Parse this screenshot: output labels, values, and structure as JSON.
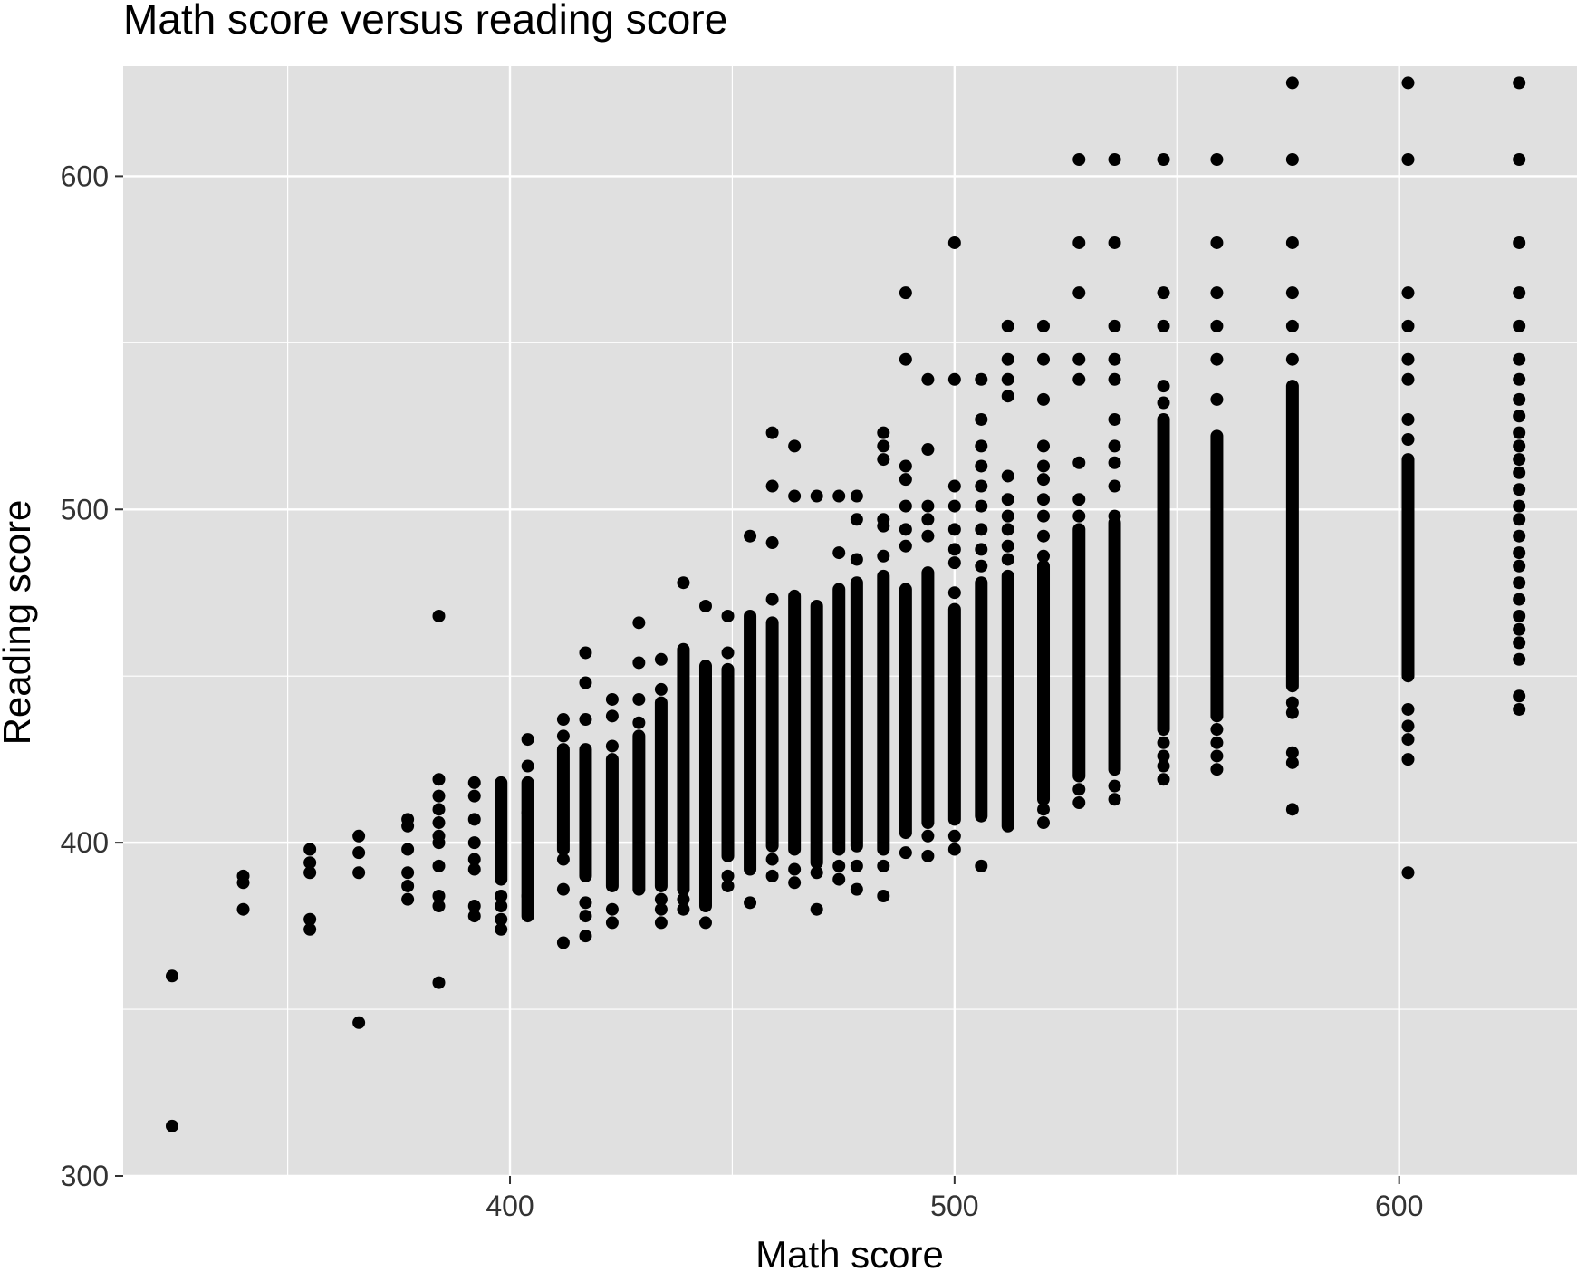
{
  "chart_data": {
    "type": "scatter",
    "title": "Math score versus reading score",
    "xlabel": "Math score",
    "ylabel": "Reading score",
    "xlim": [
      313,
      640
    ],
    "ylim": [
      300,
      633
    ],
    "x_ticks": [
      400,
      500,
      600
    ],
    "y_ticks": [
      300,
      400,
      500,
      600
    ],
    "grid": true,
    "legend": "none",
    "colors": {
      "panel": "#e0e0e0",
      "grid": "#ffffff",
      "point": "#000000",
      "tick": "#333333"
    },
    "columns": [
      {
        "x": 324,
        "y": [
          315,
          360
        ]
      },
      {
        "x": 340,
        "y": [
          380,
          388,
          390
        ]
      },
      {
        "x": 355,
        "y": [
          374,
          377,
          391,
          394,
          398
        ]
      },
      {
        "x": 366,
        "y": [
          346,
          391,
          397,
          402
        ]
      },
      {
        "x": 377,
        "y": [
          383,
          387,
          391,
          398,
          405,
          407
        ]
      },
      {
        "x": 384,
        "y": [
          358,
          381,
          384,
          393,
          400,
          402,
          406,
          410,
          414,
          419,
          468
        ]
      },
      {
        "x": 392,
        "y": [
          378,
          381,
          392,
          395,
          400,
          407,
          414,
          418
        ]
      },
      {
        "x": 398,
        "y": [
          374,
          377,
          381,
          384
        ],
        "ranges": [
          [
            389,
            418
          ]
        ]
      },
      {
        "x": 404,
        "y": [
          384,
          409,
          423,
          431
        ],
        "ranges": [
          [
            378,
            418
          ]
        ]
      },
      {
        "x": 412,
        "y": [
          370,
          386,
          395,
          432,
          437
        ],
        "ranges": [
          [
            398,
            428
          ]
        ]
      },
      {
        "x": 417,
        "y": [
          372,
          378,
          382,
          437,
          448,
          457
        ],
        "ranges": [
          [
            390,
            428
          ]
        ]
      },
      {
        "x": 423,
        "y": [
          376,
          380,
          429,
          438,
          443
        ],
        "ranges": [
          [
            387,
            425
          ]
        ]
      },
      {
        "x": 429,
        "y": [
          436,
          443,
          454,
          466
        ],
        "ranges": [
          [
            386,
            432
          ]
        ]
      },
      {
        "x": 434,
        "y": [
          376,
          380,
          383,
          446,
          455
        ],
        "ranges": [
          [
            387,
            442
          ]
        ]
      },
      {
        "x": 439,
        "y": [
          380,
          383,
          478
        ],
        "ranges": [
          [
            386,
            458
          ]
        ]
      },
      {
        "x": 444,
        "y": [
          376,
          471
        ],
        "ranges": [
          [
            381,
            453
          ]
        ]
      },
      {
        "x": 449,
        "y": [
          387,
          390,
          457,
          468
        ],
        "ranges": [
          [
            396,
            452
          ]
        ]
      },
      {
        "x": 454,
        "y": [
          382,
          492
        ],
        "ranges": [
          [
            392,
            468
          ]
        ]
      },
      {
        "x": 459,
        "y": [
          390,
          395,
          473,
          490,
          507,
          523
        ],
        "ranges": [
          [
            399,
            466
          ]
        ]
      },
      {
        "x": 464,
        "y": [
          388,
          392,
          504,
          519
        ],
        "ranges": [
          [
            398,
            474
          ]
        ]
      },
      {
        "x": 469,
        "y": [
          380,
          391,
          504
        ],
        "ranges": [
          [
            394,
            471
          ]
        ]
      },
      {
        "x": 474,
        "y": [
          389,
          393,
          487,
          504
        ],
        "ranges": [
          [
            398,
            476
          ]
        ]
      },
      {
        "x": 478,
        "y": [
          386,
          393,
          485,
          497,
          504
        ],
        "ranges": [
          [
            399,
            478
          ]
        ]
      },
      {
        "x": 484,
        "y": [
          384,
          393,
          486,
          495,
          497,
          515,
          519,
          523
        ],
        "ranges": [
          [
            398,
            480
          ]
        ]
      },
      {
        "x": 489,
        "y": [
          397,
          489,
          494,
          501,
          509,
          513,
          545,
          565
        ],
        "ranges": [
          [
            403,
            476
          ]
        ]
      },
      {
        "x": 494,
        "y": [
          396,
          402,
          492,
          497,
          501,
          518,
          539
        ],
        "ranges": [
          [
            406,
            481
          ]
        ]
      },
      {
        "x": 500,
        "y": [
          398,
          402,
          475,
          484,
          488,
          494,
          501,
          507,
          539,
          580
        ],
        "ranges": [
          [
            407,
            470
          ]
        ]
      },
      {
        "x": 506,
        "y": [
          393,
          483,
          488,
          494,
          501,
          507,
          513,
          519,
          527,
          539
        ],
        "ranges": [
          [
            408,
            478
          ]
        ]
      },
      {
        "x": 512,
        "y": [
          485,
          489,
          494,
          498,
          503,
          510,
          534,
          539,
          545,
          555
        ],
        "ranges": [
          [
            405,
            480
          ]
        ]
      },
      {
        "x": 520,
        "y": [
          406,
          410,
          486,
          492,
          498,
          503,
          509,
          513,
          519,
          533,
          545,
          555
        ],
        "ranges": [
          [
            413,
            483
          ]
        ]
      },
      {
        "x": 528,
        "y": [
          412,
          416,
          498,
          503,
          514,
          539,
          545,
          565,
          580,
          605
        ],
        "ranges": [
          [
            420,
            494
          ]
        ]
      },
      {
        "x": 536,
        "y": [
          413,
          417,
          498,
          507,
          514,
          519,
          527,
          539,
          545,
          555,
          580,
          605
        ],
        "ranges": [
          [
            422,
            496
          ]
        ]
      },
      {
        "x": 547,
        "y": [
          419,
          423,
          426,
          430,
          532,
          537,
          555,
          565,
          605
        ],
        "ranges": [
          [
            434,
            527
          ]
        ]
      },
      {
        "x": 559,
        "y": [
          422,
          426,
          430,
          434,
          533,
          545,
          555,
          565,
          580,
          605
        ],
        "ranges": [
          [
            438,
            522
          ]
        ]
      },
      {
        "x": 576,
        "y": [
          410,
          424,
          427,
          439,
          442,
          545,
          555,
          565,
          580,
          605,
          628
        ],
        "ranges": [
          [
            447,
            537
          ]
        ]
      },
      {
        "x": 602,
        "y": [
          391,
          425,
          431,
          435,
          440,
          521,
          527,
          539,
          545,
          555,
          565,
          605,
          628
        ],
        "ranges": [
          [
            450,
            515
          ]
        ]
      },
      {
        "x": 627,
        "y": [
          440,
          444,
          455,
          460,
          464,
          468,
          473,
          478,
          483,
          487,
          492,
          497,
          501,
          506,
          511,
          515,
          519,
          523,
          528,
          533,
          539,
          545,
          555,
          565,
          580,
          605,
          628
        ]
      }
    ]
  }
}
